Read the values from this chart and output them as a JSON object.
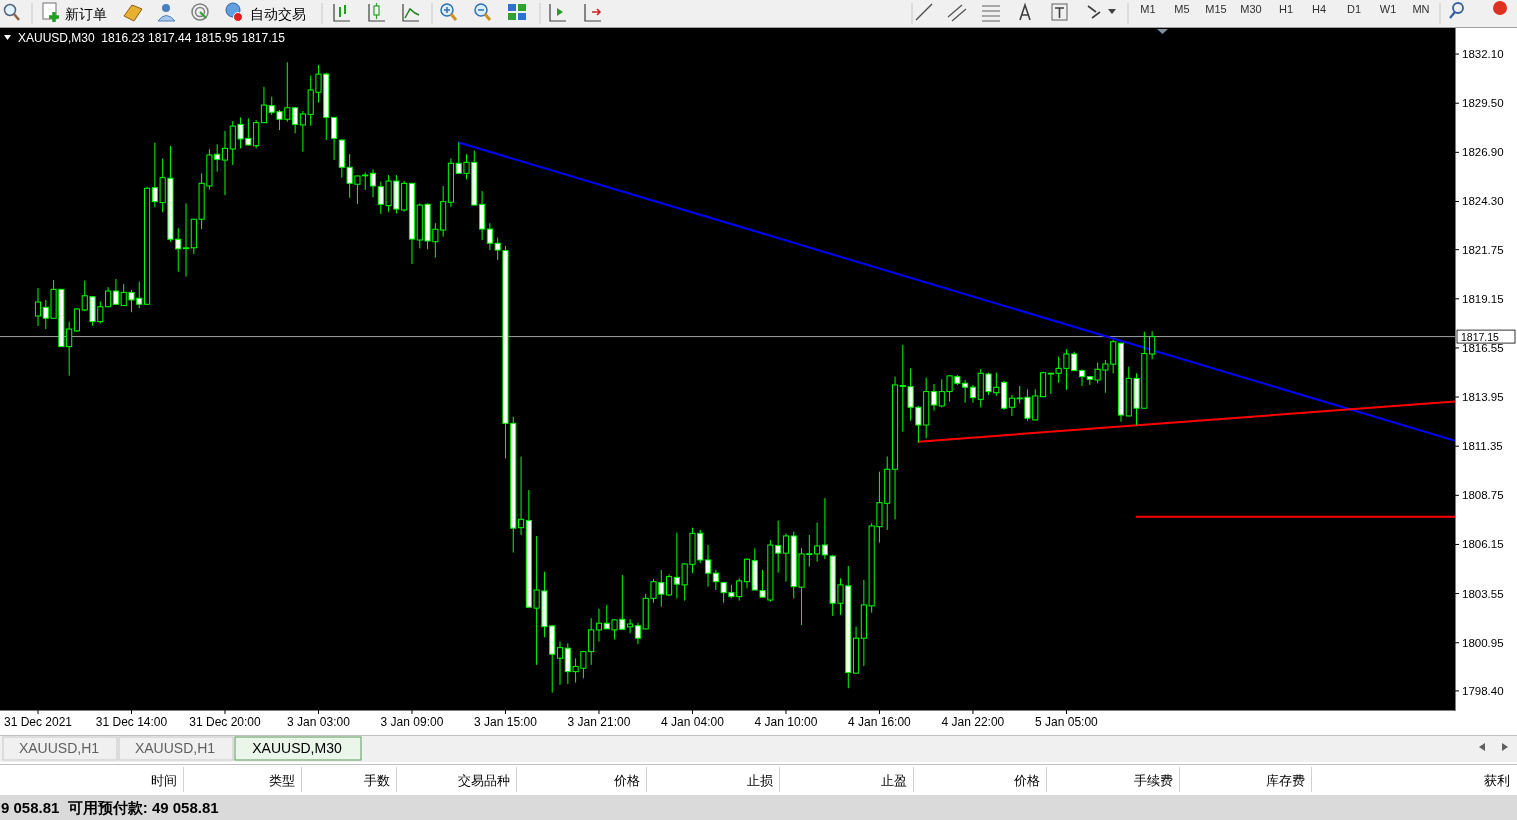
{
  "chart_data": {
    "type": "candlestick",
    "title": "XAUUSD,M30  1816.23 1817.44 1815.95 1817.15",
    "color": "#00ff00",
    "categories": [
      "31 Dec 2021",
      null,
      null,
      null,
      null,
      null,
      null,
      null,
      null,
      null,
      null,
      null,
      "31 Dec 14:00",
      null,
      null,
      null,
      null,
      null,
      null,
      null,
      null,
      null,
      null,
      null,
      "31 Dec 20:00",
      null,
      null,
      null,
      null,
      null,
      null,
      null,
      null,
      null,
      null,
      null,
      "3 Jan 03:00",
      null,
      null,
      null,
      null,
      null,
      null,
      null,
      null,
      null,
      null,
      null,
      "3 Jan 09:00",
      null,
      null,
      null,
      null,
      null,
      null,
      null,
      null,
      null,
      null,
      null,
      "3 Jan 15:00",
      null,
      null,
      null,
      null,
      null,
      null,
      null,
      null,
      null,
      null,
      null,
      "3 Jan 21:00",
      null,
      null,
      null,
      null,
      null,
      null,
      null,
      null,
      null,
      null,
      null,
      "4 Jan 04:00",
      null,
      null,
      null,
      null,
      null,
      null,
      null,
      null,
      null,
      null,
      null,
      "4 Jan 10:00",
      null,
      null,
      null,
      null,
      null,
      null,
      null,
      null,
      null,
      null,
      null,
      "4 Jan 16:00",
      null,
      null,
      null,
      null,
      null,
      null,
      null,
      null,
      null,
      null,
      null,
      "4 Jan 22:00",
      null,
      null,
      null,
      null,
      null,
      null,
      null,
      null,
      null,
      null,
      null,
      "5 Jan 05:00",
      null,
      null,
      null,
      null,
      null,
      null,
      null,
      null,
      null,
      null,
      null,
      null,
      null,
      null,
      null,
      null,
      null,
      null,
      null,
      null,
      null,
      null,
      null,
      null,
      null,
      null,
      null,
      null,
      null,
      null,
      null,
      null,
      null,
      null,
      null,
      null,
      null,
      null,
      null,
      null,
      null,
      null,
      null,
      null,
      null,
      null,
      null,
      null,
      null,
      null
    ],
    "ohlc": [
      [
        1818.24,
        1819.72,
        1817.71,
        1818.98
      ],
      [
        1818.7,
        1819.09,
        1817.55,
        1818.12
      ],
      [
        1818.12,
        1820.15,
        1818.1,
        1819.65
      ],
      [
        1819.65,
        1819.67,
        1816.6,
        1816.62
      ],
      [
        1816.62,
        1817.94,
        1815.08,
        1817.55
      ],
      [
        1817.45,
        1818.66,
        1817.39,
        1818.61
      ],
      [
        1818.56,
        1820.11,
        1818.5,
        1819.31
      ],
      [
        1819.26,
        1819.3,
        1817.73,
        1817.94
      ],
      [
        1817.94,
        1819.0,
        1817.85,
        1818.73
      ],
      [
        1818.73,
        1819.76,
        1818.7,
        1819.56
      ],
      [
        1819.56,
        1820.2,
        1818.82,
        1818.86
      ],
      [
        1818.79,
        1819.93,
        1818.77,
        1819.49
      ],
      [
        1819.49,
        1819.62,
        1818.44,
        1819.09
      ],
      [
        1819.18,
        1820.06,
        1818.65,
        1818.86
      ],
      [
        1818.86,
        1825.08,
        1818.82,
        1825.0
      ],
      [
        1825.03,
        1827.41,
        1823.99,
        1824.29
      ],
      [
        1824.24,
        1826.58,
        1823.73,
        1825.56
      ],
      [
        1825.53,
        1827.24,
        1822.17,
        1822.3
      ],
      [
        1822.3,
        1822.88,
        1820.58,
        1821.79
      ],
      [
        1821.82,
        1824.2,
        1820.32,
        1821.85
      ],
      [
        1821.85,
        1823.37,
        1821.52,
        1823.36
      ],
      [
        1823.36,
        1825.79,
        1822.84,
        1825.26
      ],
      [
        1825.12,
        1827.06,
        1824.94,
        1826.76
      ],
      [
        1826.8,
        1827.33,
        1825.88,
        1826.53
      ],
      [
        1826.49,
        1828.03,
        1824.64,
        1827.11
      ],
      [
        1827.08,
        1828.56,
        1826.23,
        1828.29
      ],
      [
        1828.38,
        1828.75,
        1827.11,
        1827.61
      ],
      [
        1827.64,
        1828.7,
        1827.27,
        1827.29
      ],
      [
        1827.25,
        1828.61,
        1827.11,
        1828.47
      ],
      [
        1828.47,
        1830.37,
        1828.45,
        1829.4
      ],
      [
        1829.37,
        1829.84,
        1828.88,
        1829.02
      ],
      [
        1829.05,
        1829.14,
        1828.08,
        1828.65
      ],
      [
        1828.65,
        1831.66,
        1828.52,
        1829.26
      ],
      [
        1829.26,
        1829.3,
        1827.91,
        1828.38
      ],
      [
        1828.35,
        1829.09,
        1826.93,
        1828.93
      ],
      [
        1828.91,
        1830.96,
        1828.31,
        1830.2
      ],
      [
        1830.08,
        1831.52,
        1829.53,
        1831.04
      ],
      [
        1831.04,
        1831.1,
        1827.55,
        1828.75
      ],
      [
        1828.75,
        1828.77,
        1826.49,
        1827.64
      ],
      [
        1827.55,
        1827.6,
        1825.56,
        1826.11
      ],
      [
        1826.11,
        1826.81,
        1824.5,
        1825.26
      ],
      [
        1825.21,
        1825.68,
        1824.17,
        1825.65
      ],
      [
        1825.68,
        1825.84,
        1824.91,
        1825.7
      ],
      [
        1825.79,
        1826.0,
        1824.52,
        1825.12
      ],
      [
        1825.08,
        1825.35,
        1823.64,
        1824.15
      ],
      [
        1824.08,
        1825.7,
        1823.76,
        1825.38
      ],
      [
        1825.38,
        1825.7,
        1823.67,
        1823.9
      ],
      [
        1823.85,
        1825.38,
        1823.76,
        1825.26
      ],
      [
        1825.26,
        1825.28,
        1820.99,
        1822.31
      ],
      [
        1822.26,
        1824.2,
        1821.82,
        1824.11
      ],
      [
        1824.15,
        1824.2,
        1821.77,
        1822.21
      ],
      [
        1822.17,
        1823.15,
        1821.33,
        1822.83
      ],
      [
        1822.79,
        1825.12,
        1822.44,
        1824.29
      ],
      [
        1824.26,
        1826.58,
        1824.02,
        1826.32
      ],
      [
        1826.32,
        1827.43,
        1825.78,
        1825.79
      ],
      [
        1825.79,
        1826.8,
        1825.47,
        1826.37
      ],
      [
        1826.37,
        1826.99,
        1824.1,
        1824.11
      ],
      [
        1824.15,
        1824.85,
        1822.26,
        1822.84
      ],
      [
        1822.84,
        1823.15,
        1821.73,
        1822.09
      ],
      [
        1822.09,
        1822.38,
        1821.2,
        1821.73
      ],
      [
        1821.7,
        1821.94,
        1810.71,
        1812.56
      ],
      [
        1812.56,
        1812.91,
        1805.72,
        1807.01
      ],
      [
        1807.04,
        1810.8,
        1806.65,
        1807.48
      ],
      [
        1807.41,
        1809.03,
        1802.82,
        1802.83
      ],
      [
        1802.78,
        1806.6,
        1799.78,
        1803.74
      ],
      [
        1803.69,
        1804.71,
        1801.24,
        1801.8
      ],
      [
        1801.84,
        1801.89,
        1798.31,
        1800.34
      ],
      [
        1800.13,
        1801.01,
        1798.72,
        1800.69
      ],
      [
        1800.66,
        1800.92,
        1798.77,
        1799.42
      ],
      [
        1799.42,
        1800.13,
        1798.84,
        1799.69
      ],
      [
        1799.6,
        1800.49,
        1799.07,
        1800.48
      ],
      [
        1800.48,
        1802.25,
        1799.78,
        1801.63
      ],
      [
        1801.63,
        1802.74,
        1801.01,
        1801.98
      ],
      [
        1801.98,
        1802.95,
        1801.67,
        1801.68
      ],
      [
        1801.63,
        1802.18,
        1801.13,
        1802.16
      ],
      [
        1802.19,
        1804.54,
        1801.65,
        1801.66
      ],
      [
        1801.79,
        1802.19,
        1801.45,
        1801.94
      ],
      [
        1801.85,
        1802.01,
        1800.87,
        1801.19
      ],
      [
        1801.68,
        1803.53,
        1801.66,
        1803.3
      ],
      [
        1803.3,
        1804.31,
        1803.07,
        1804.18
      ],
      [
        1804.13,
        1804.8,
        1802.86,
        1803.52
      ],
      [
        1803.48,
        1804.57,
        1803.43,
        1804.45
      ],
      [
        1804.41,
        1806.78,
        1803.3,
        1804.05
      ],
      [
        1804.01,
        1805.16,
        1803.18,
        1805.12
      ],
      [
        1805.1,
        1807.04,
        1804.63,
        1806.74
      ],
      [
        1806.74,
        1806.92,
        1805.16,
        1805.33
      ],
      [
        1805.33,
        1806.12,
        1803.92,
        1804.63
      ],
      [
        1804.63,
        1804.8,
        1803.74,
        1804.18
      ],
      [
        1804.13,
        1804.18,
        1803.07,
        1803.6
      ],
      [
        1803.6,
        1804.01,
        1803.3,
        1803.39
      ],
      [
        1803.39,
        1804.36,
        1803.18,
        1804.22
      ],
      [
        1804.18,
        1805.42,
        1803.83,
        1805.37
      ],
      [
        1805.29,
        1805.95,
        1803.73,
        1803.74
      ],
      [
        1803.71,
        1804.8,
        1803.35,
        1803.36
      ],
      [
        1803.21,
        1806.39,
        1803.12,
        1806.12
      ],
      [
        1806.09,
        1807.41,
        1804.66,
        1805.69
      ],
      [
        1805.69,
        1806.74,
        1804.18,
        1806.6
      ],
      [
        1806.6,
        1806.83,
        1803.3,
        1803.92
      ],
      [
        1803.89,
        1805.95,
        1801.89,
        1805.65
      ],
      [
        1805.65,
        1806.65,
        1804.98,
        1805.66
      ],
      [
        1805.65,
        1807.3,
        1805.24,
        1806.07
      ],
      [
        1806.12,
        1808.6,
        1805.37,
        1805.6
      ],
      [
        1805.54,
        1805.6,
        1802.37,
        1803.04
      ],
      [
        1803.04,
        1804.36,
        1802.42,
        1804.01
      ],
      [
        1803.96,
        1805.01,
        1798.54,
        1799.37
      ],
      [
        1799.34,
        1801.8,
        1799.33,
        1801.19
      ],
      [
        1801.19,
        1804.27,
        1799.72,
        1802.95
      ],
      [
        1802.9,
        1807.27,
        1802.54,
        1807.13
      ],
      [
        1807.09,
        1810.0,
        1806.25,
        1808.36
      ],
      [
        1808.33,
        1810.8,
        1806.92,
        1810.13
      ],
      [
        1810.13,
        1815.03,
        1807.48,
        1814.59
      ],
      [
        1814.56,
        1816.71,
        1812.12,
        1814.54
      ],
      [
        1814.5,
        1815.47,
        1812.7,
        1813.41
      ],
      [
        1813.41,
        1813.48,
        1811.54,
        1812.47
      ],
      [
        1812.47,
        1814.98,
        1811.77,
        1814.24
      ],
      [
        1814.24,
        1814.64,
        1813.23,
        1813.53
      ],
      [
        1813.48,
        1814.89,
        1813.41,
        1814.24
      ],
      [
        1814.24,
        1815.12,
        1813.71,
        1815.07
      ],
      [
        1815.03,
        1815.12,
        1814.59,
        1814.68
      ],
      [
        1814.68,
        1814.85,
        1813.65,
        1814.47
      ],
      [
        1814.47,
        1814.59,
        1813.65,
        1813.92
      ],
      [
        1813.83,
        1815.44,
        1813.41,
        1815.21
      ],
      [
        1815.17,
        1815.24,
        1814.06,
        1814.24
      ],
      [
        1814.18,
        1815.24,
        1814.02,
        1814.47
      ],
      [
        1814.73,
        1814.8,
        1813.27,
        1813.36
      ],
      [
        1813.41,
        1814.06,
        1812.95,
        1813.89
      ],
      [
        1813.89,
        1814.54,
        1813.62,
        1813.9
      ],
      [
        1813.94,
        1814.36,
        1812.7,
        1812.83
      ],
      [
        1812.74,
        1814.36,
        1812.73,
        1814.01
      ],
      [
        1813.97,
        1815.29,
        1813.96,
        1815.24
      ],
      [
        1815.2,
        1815.24,
        1814.11,
        1815.21
      ],
      [
        1815.21,
        1816.09,
        1814.71,
        1815.47
      ],
      [
        1815.47,
        1816.48,
        1814.33,
        1816.23
      ],
      [
        1816.23,
        1816.35,
        1815.34,
        1815.35
      ],
      [
        1815.35,
        1815.42,
        1814.54,
        1815.03
      ],
      [
        1815.03,
        1815.04,
        1814.59,
        1814.89
      ],
      [
        1814.85,
        1815.77,
        1814.68,
        1815.42
      ],
      [
        1815.38,
        1815.91,
        1814.18,
        1815.7
      ],
      [
        1815.69,
        1816.97,
        1815.21,
        1816.88
      ],
      [
        1816.8,
        1816.83,
        1812.65,
        1813.0
      ],
      [
        1812.95,
        1815.56,
        1812.94,
        1814.94
      ],
      [
        1814.94,
        1815.21,
        1812.47,
        1813.36
      ],
      [
        1813.36,
        1817.4,
        1813.35,
        1816.25
      ],
      [
        1816.23,
        1817.44,
        1815.95,
        1817.15
      ],
      null,
      null,
      null,
      null,
      null,
      null,
      null,
      null,
      null,
      null,
      null,
      null,
      null,
      null,
      null,
      null,
      null,
      null,
      null,
      null,
      null,
      null,
      null,
      null,
      null,
      null,
      null,
      null,
      null,
      null,
      null,
      null,
      null,
      null,
      null,
      null,
      null,
      null,
      null
    ],
    "series": [
      {
        "type": "line",
        "color": "#0000ff",
        "values": [
          null,
          null,
          null,
          null,
          null,
          null,
          null,
          null,
          null,
          null,
          null,
          null,
          null,
          null,
          null,
          null,
          null,
          null,
          null,
          null,
          null,
          null,
          null,
          null,
          null,
          null,
          null,
          null,
          null,
          null,
          null,
          null,
          null,
          null,
          null,
          null,
          null,
          null,
          null,
          null,
          null,
          null,
          null,
          null,
          null,
          null,
          null,
          null,
          null,
          null,
          null,
          null,
          null,
          null,
          1827.42,
          null,
          null,
          null,
          null,
          null,
          null,
          null,
          null,
          null,
          null,
          null,
          null,
          null,
          null,
          null,
          null,
          null,
          null,
          null,
          null,
          null,
          null,
          null,
          null,
          null,
          null,
          null,
          null,
          null,
          null,
          null,
          null,
          null,
          null,
          null,
          null,
          null,
          null,
          null,
          null,
          null,
          null,
          null,
          null,
          null,
          null,
          null,
          null,
          null,
          null,
          null,
          null,
          null,
          null,
          null,
          null,
          null,
          null,
          null,
          null,
          null,
          null,
          null,
          null,
          null,
          null,
          null,
          null,
          null,
          null,
          null,
          null,
          null,
          null,
          null,
          null,
          null,
          null,
          null,
          null,
          null,
          null,
          null,
          null,
          null,
          null,
          null,
          null,
          null,
          null,
          null,
          null,
          null,
          null,
          null,
          null,
          null,
          null,
          null,
          null,
          null,
          null,
          null,
          null,
          null,
          null,
          null,
          null,
          null,
          null,
          null,
          null,
          null,
          null,
          null,
          null,
          null,
          null,
          null,
          null,
          null,
          null,
          null,
          null,
          null,
          null,
          null,
          1811.62
        ]
      },
      {
        "type": "line",
        "color": "#ff0000",
        "values": [
          null,
          null,
          null,
          null,
          null,
          null,
          null,
          null,
          null,
          null,
          null,
          null,
          null,
          null,
          null,
          null,
          null,
          null,
          null,
          null,
          null,
          null,
          null,
          null,
          null,
          null,
          null,
          null,
          null,
          null,
          null,
          null,
          null,
          null,
          null,
          null,
          null,
          null,
          null,
          null,
          null,
          null,
          null,
          null,
          null,
          null,
          null,
          null,
          null,
          null,
          null,
          null,
          null,
          null,
          null,
          null,
          null,
          null,
          null,
          null,
          null,
          null,
          null,
          null,
          null,
          null,
          null,
          null,
          null,
          null,
          null,
          null,
          null,
          null,
          null,
          null,
          null,
          null,
          null,
          null,
          null,
          null,
          null,
          null,
          null,
          null,
          null,
          null,
          null,
          null,
          null,
          null,
          null,
          null,
          null,
          null,
          null,
          null,
          null,
          null,
          null,
          null,
          null,
          null,
          null,
          null,
          null,
          null,
          null,
          null,
          null,
          null,
          null,
          1811.59,
          null,
          null,
          null,
          null,
          null,
          null,
          null,
          null,
          null,
          null,
          null,
          null,
          null,
          null,
          null,
          null,
          null,
          null,
          null,
          null,
          null,
          null,
          null,
          null,
          null,
          null,
          null,
          null,
          null,
          null,
          null,
          null,
          null,
          null,
          null,
          null,
          null,
          null,
          null,
          null,
          null,
          null,
          null,
          null,
          null,
          null,
          null,
          null,
          null,
          null,
          null,
          null,
          null,
          null,
          null,
          null,
          null,
          null,
          null,
          null,
          null,
          null,
          null,
          null,
          null,
          null,
          null,
          null,
          1813.72
        ]
      },
      {
        "type": "line",
        "color": "#ff0000",
        "values": [
          null,
          null,
          null,
          null,
          null,
          null,
          null,
          null,
          null,
          null,
          null,
          null,
          null,
          null,
          null,
          null,
          null,
          null,
          null,
          null,
          null,
          null,
          null,
          null,
          null,
          null,
          null,
          null,
          null,
          null,
          null,
          null,
          null,
          null,
          null,
          null,
          null,
          null,
          null,
          null,
          null,
          null,
          null,
          null,
          null,
          null,
          null,
          null,
          null,
          null,
          null,
          null,
          null,
          null,
          null,
          null,
          null,
          null,
          null,
          null,
          null,
          null,
          null,
          null,
          null,
          null,
          null,
          null,
          null,
          null,
          null,
          null,
          null,
          null,
          null,
          null,
          null,
          null,
          null,
          null,
          null,
          null,
          null,
          null,
          null,
          null,
          null,
          null,
          null,
          null,
          null,
          null,
          null,
          null,
          null,
          null,
          null,
          null,
          null,
          null,
          null,
          null,
          null,
          null,
          null,
          null,
          null,
          null,
          null,
          null,
          null,
          null,
          null,
          null,
          null,
          null,
          null,
          null,
          null,
          null,
          null,
          null,
          null,
          null,
          null,
          null,
          null,
          null,
          null,
          null,
          null,
          null,
          null,
          null,
          null,
          null,
          null,
          null,
          null,
          null,
          null,
          1807.61,
          null,
          null,
          null,
          null,
          null,
          null,
          null,
          null,
          null,
          null,
          null,
          null,
          null,
          null,
          null,
          null,
          null,
          null,
          null,
          null,
          null,
          null,
          null,
          null,
          null,
          null,
          null,
          null,
          null,
          null,
          null,
          null,
          null,
          null,
          null,
          null,
          null,
          null,
          null,
          null,
          1807.61
        ]
      }
    ],
    "ref_lines": [
      {
        "axis": "y",
        "value": 1817.15,
        "label": "1817.15",
        "color": "#a0a0a8"
      }
    ],
    "ylim": [
      1797.39,
      1833.48
    ],
    "yticks": [
      {
        "value": 1832.1,
        "label": "1832.10"
      },
      {
        "value": 1829.5,
        "label": "1829.50"
      },
      {
        "value": 1826.9,
        "label": "1826.90"
      },
      {
        "value": 1824.3,
        "label": "1824.30"
      },
      1821.75,
      1819.15,
      1816.55,
      1813.95,
      1811.35,
      1808.75,
      1806.15,
      1803.55,
      1800.95,
      {
        "value": 1798.4,
        "label": "1798.40"
      }
    ],
    "annotations": [
      "新订单",
      "自动交易",
      "M1",
      "M5",
      "M15",
      "M30",
      "H1",
      "H4",
      "D1",
      "W1",
      "MN",
      "XAUUSD,H1",
      "XAUUSD,H1",
      "XAUUSD,M30",
      "时间",
      "类型",
      "手数",
      "交易品种",
      "价格",
      "止损",
      "止盈",
      "价格",
      "手续费",
      "库存费",
      "获利",
      "9 058.81  可用预付款: 49 058.81"
    ]
  }
}
